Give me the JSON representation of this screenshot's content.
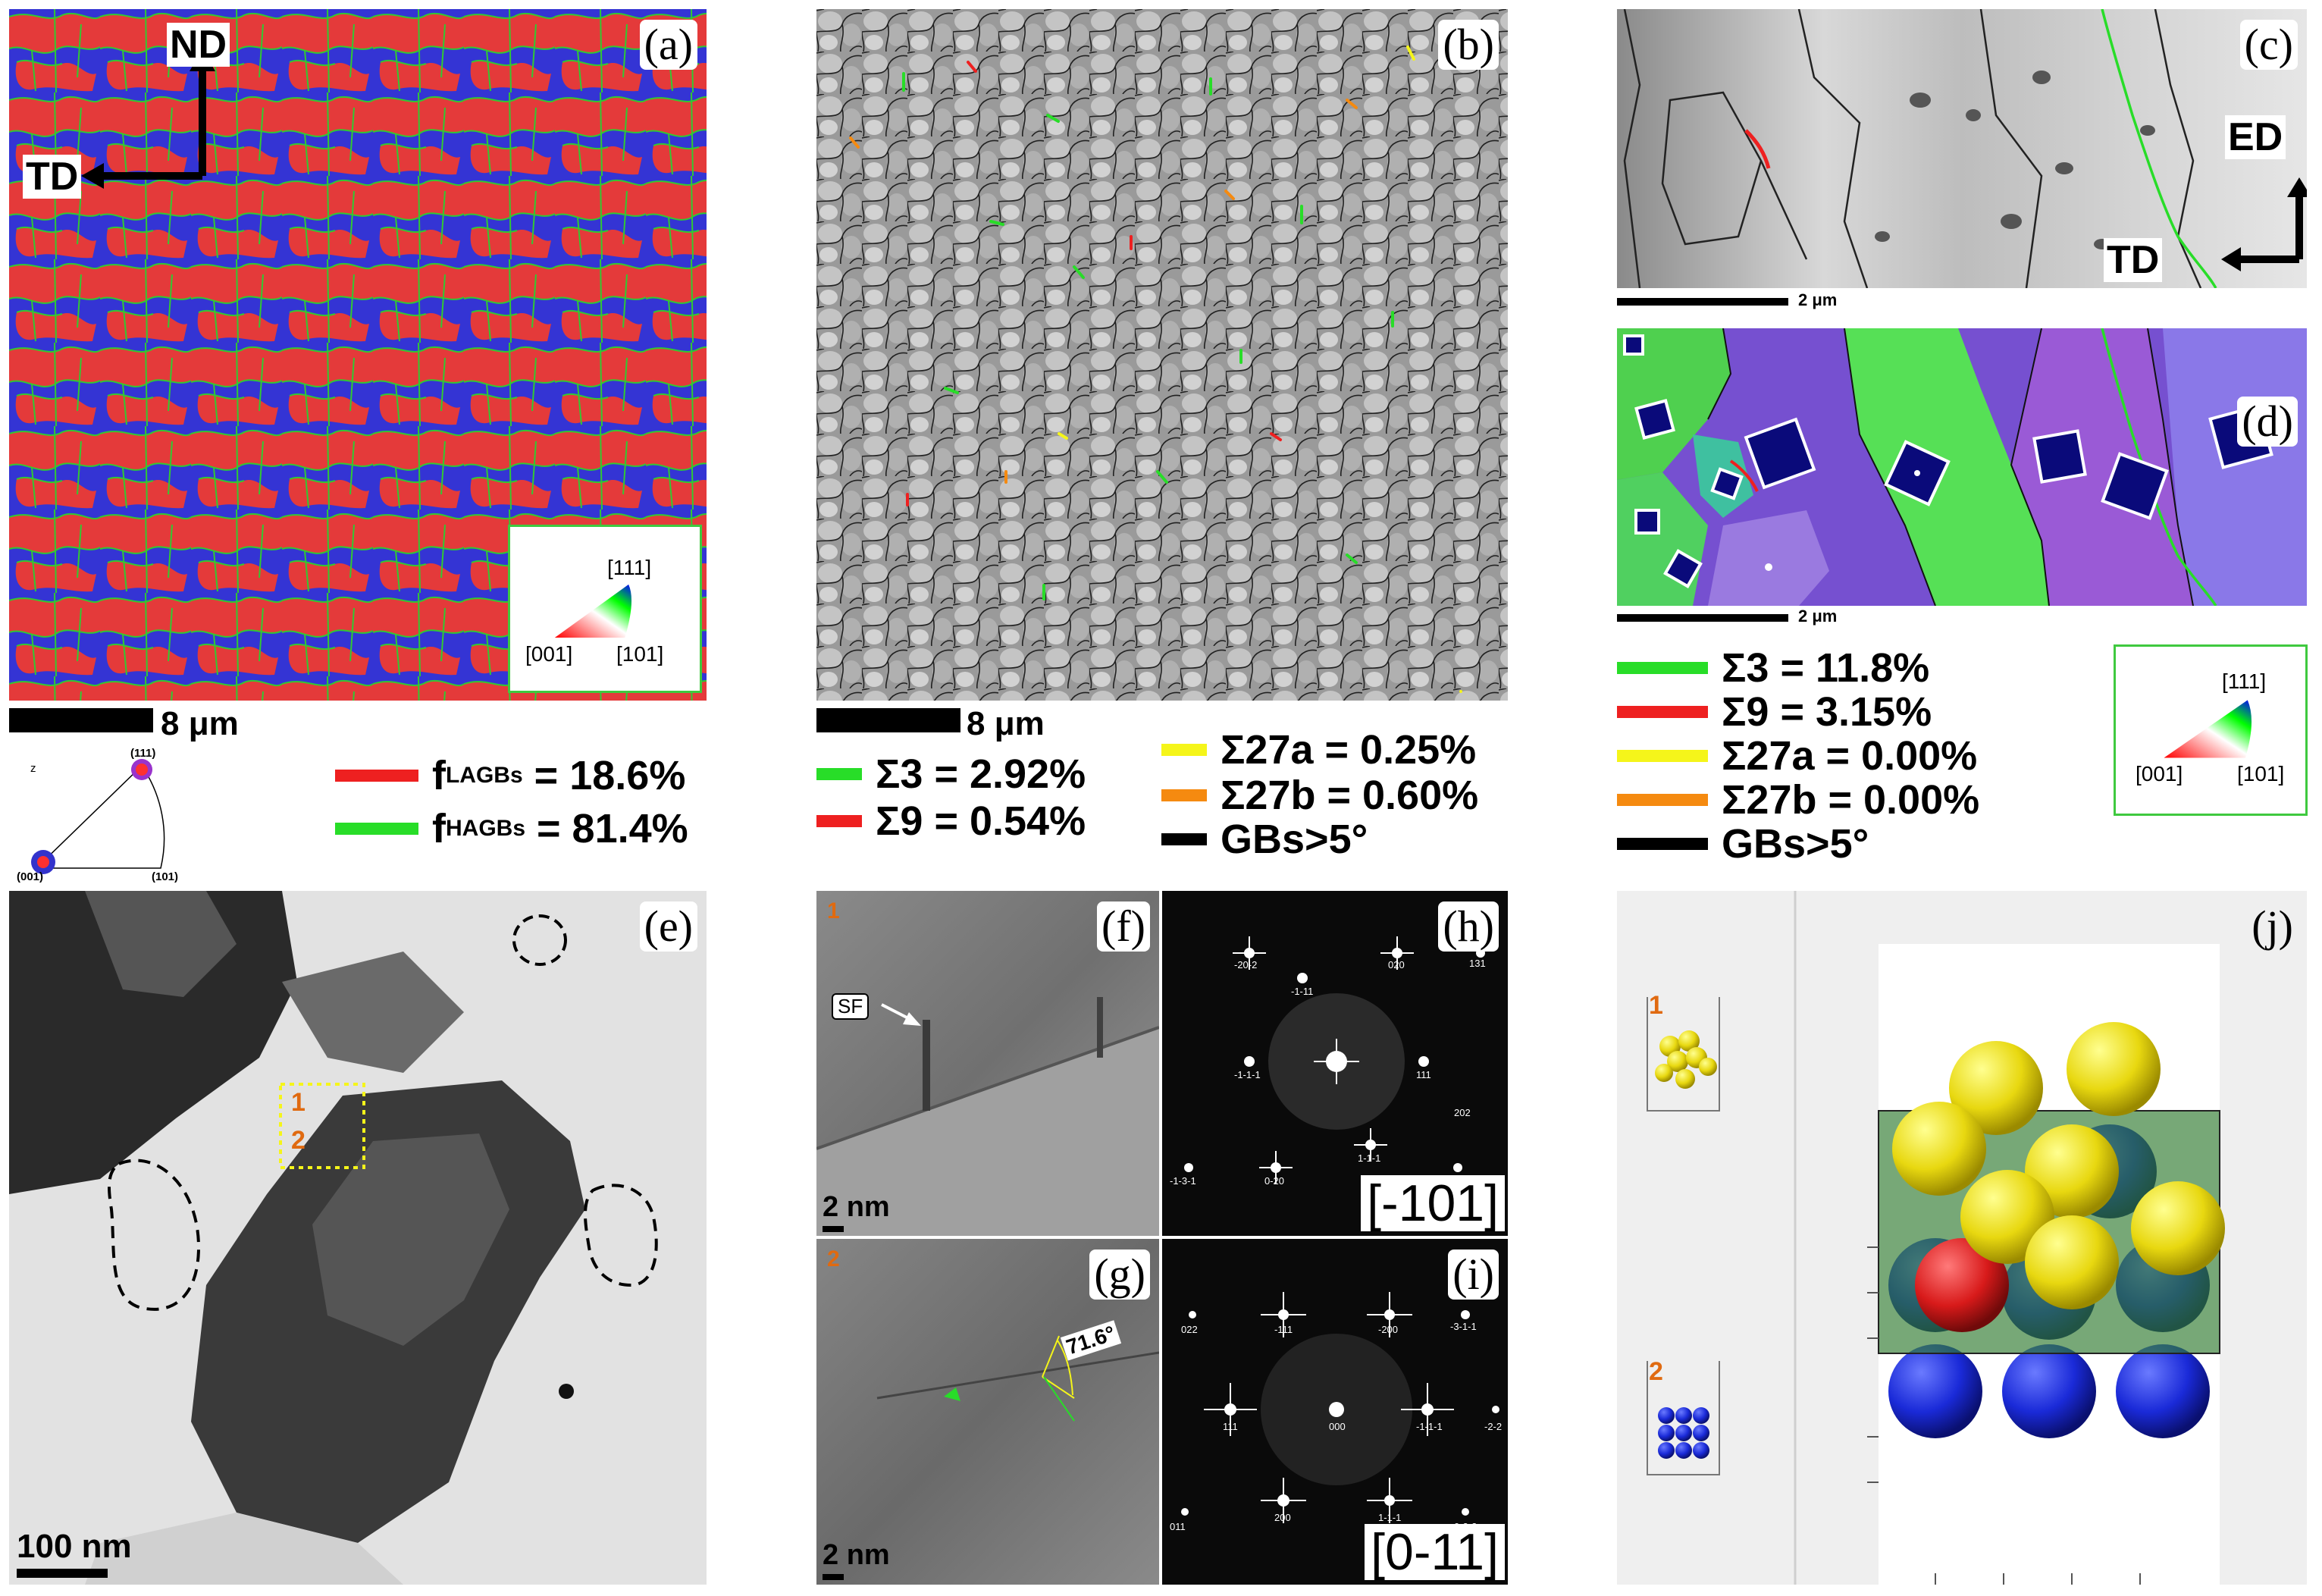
{
  "labels": {
    "a": "(a)",
    "b": "(b)",
    "c": "(c)",
    "d": "(d)",
    "e": "(e)",
    "f": "(f)",
    "g": "(g)",
    "h": "(h)",
    "i": "(i)",
    "j": "(j)"
  },
  "axes_a": {
    "up": "ND",
    "left": "TD"
  },
  "axes_c": {
    "up": "ED",
    "left": "TD"
  },
  "scale": {
    "a": "8 μm",
    "b": "8 μm",
    "c": "2 μm",
    "d": "2 μm",
    "e": "100 nm",
    "f": "2 nm",
    "g": "2 nm"
  },
  "ipf": {
    "top": "[111]",
    "left": "[001]",
    "right": "[101]"
  },
  "pole_figure": {
    "axis": "z",
    "top": "(111)",
    "left": "(001)",
    "right": "(101)"
  },
  "legend_a": [
    {
      "label": "f",
      "sub": "LAGBs",
      "value": " = 18.6%",
      "color": "#ee2020"
    },
    {
      "label": "f",
      "sub": "HAGBs",
      "value": " = 81.4%",
      "color": "#28dd28"
    }
  ],
  "legend_b_left": [
    {
      "text": "Σ3 = 2.92%",
      "color": "#28dd28"
    },
    {
      "text": "Σ9 = 0.54%",
      "color": "#ee2020"
    }
  ],
  "legend_b_right": [
    {
      "text": "Σ27a = 0.25%",
      "color": "#f5f51a"
    },
    {
      "text": "Σ27b = 0.60%",
      "color": "#f58a10"
    },
    {
      "text": "GBs>5°",
      "color": "#000000"
    }
  ],
  "legend_cd": [
    {
      "text": "Σ3 = 11.8%",
      "color": "#28dd28"
    },
    {
      "text": "Σ9 = 3.15%",
      "color": "#ee2020"
    },
    {
      "text": "Σ27a = 0.00%",
      "color": "#f5f51a"
    },
    {
      "text": "Σ27b = 0.00%",
      "color": "#f58a10"
    },
    {
      "text": "GBs>5°",
      "color": "#000000"
    }
  ],
  "markers": {
    "one": "1",
    "two": "2"
  },
  "tem": {
    "sf": "SF",
    "angle": "71.6°"
  },
  "zone_axes": {
    "h": "[-101]",
    "i": "[0-11]"
  },
  "fft_h": [
    "-20-2",
    "-1-11",
    "020",
    "131",
    "-1-1-1",
    "111",
    "202",
    "-1-3-1",
    "0-20",
    "1-1-1"
  ],
  "fft_i": [
    "022",
    "-111",
    "-200",
    "-3-1-1",
    "111",
    "000",
    "-1-1-1",
    "-2-2",
    "011",
    "200",
    "1-1-1",
    "0-2-2"
  ]
}
